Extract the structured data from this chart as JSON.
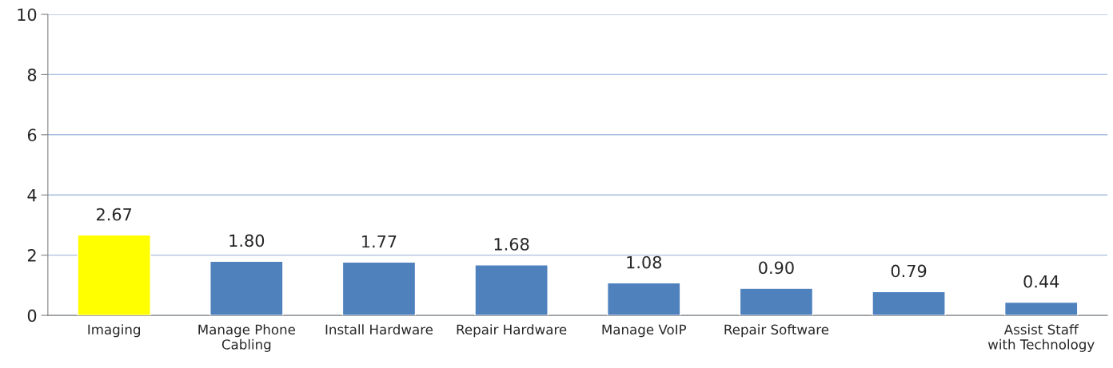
{
  "chart_data": {
    "type": "bar",
    "categories": [
      "Imaging",
      "Manage Phone Cabling",
      "Install Hardware",
      "Repair Hardware",
      "Manage VoIP",
      "Repair Software",
      null,
      "Assist Staff with Technology"
    ],
    "values": [
      2.67,
      1.8,
      1.77,
      1.68,
      1.08,
      0.9,
      0.79,
      0.44
    ],
    "value_labels": [
      "2.67",
      "1.80",
      "1.77",
      "1.68",
      "1.08",
      "0.90",
      "0.79",
      "0.44"
    ],
    "colors": [
      "#ffff00",
      "#4f81bd",
      "#4f81bd",
      "#4f81bd",
      "#4f81bd",
      "#4f81bd",
      "#4f81bd",
      "#4f81bd"
    ],
    "ylim": [
      0,
      10
    ],
    "yticks": [
      0,
      2,
      4,
      6,
      8,
      10
    ],
    "grid": "y",
    "legend": false
  }
}
